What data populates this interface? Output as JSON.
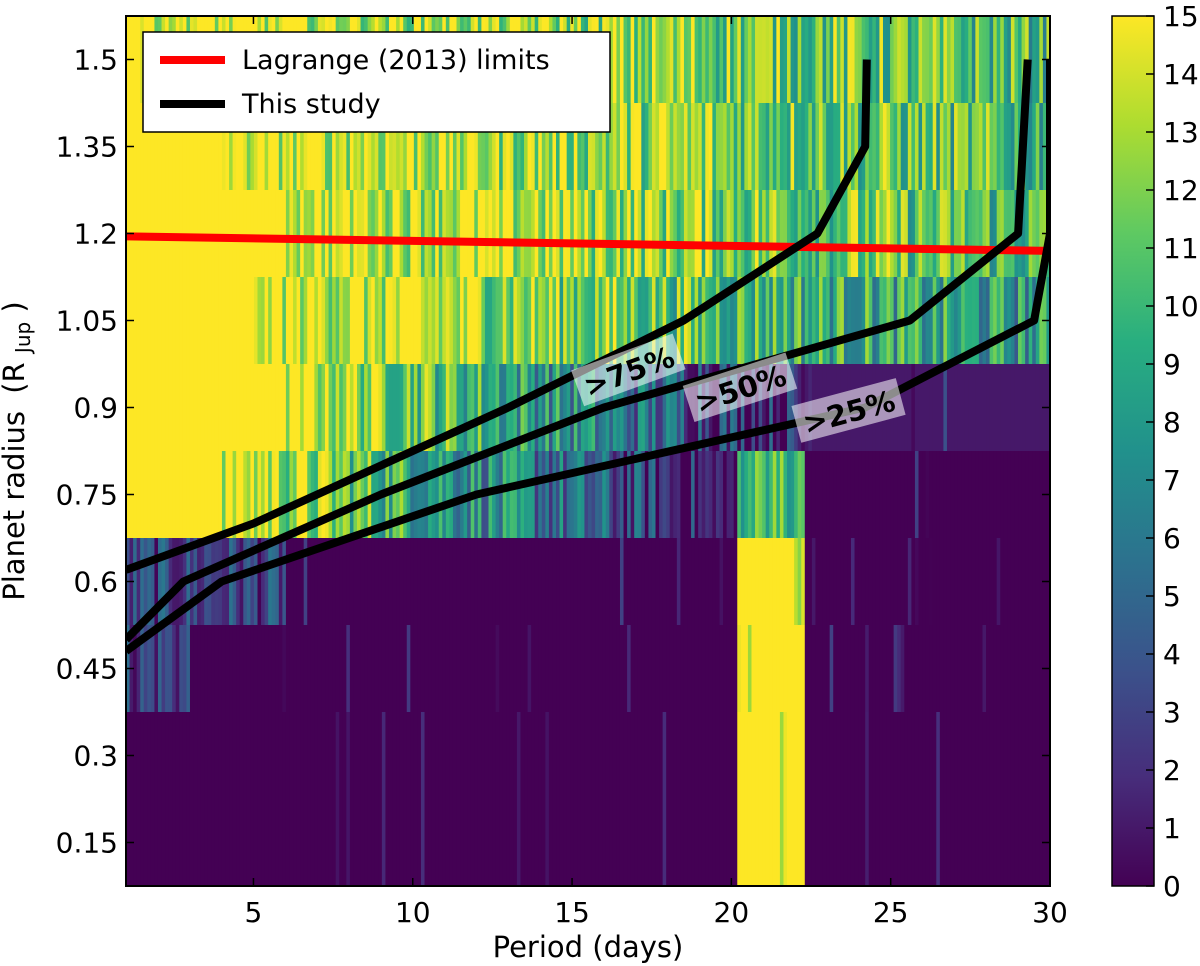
{
  "chart_data": {
    "type": "heatmap",
    "xlabel": "Period (days)",
    "ylabel": "Planet radius",
    "ylabel_unit": "(R",
    "ylabel_unit_sub": "Jup",
    "ylabel_unit_close": ")",
    "xlim": [
      1,
      30
    ],
    "ylim": [
      0.075,
      1.575
    ],
    "x_ticks": [
      5,
      10,
      15,
      20,
      25,
      30
    ],
    "y_ticks": [
      0.15,
      0.3,
      0.45,
      0.6,
      0.75,
      0.9,
      1.05,
      1.2,
      1.35,
      1.5
    ],
    "y_tick_labels": [
      "0.15",
      "0.3",
      "0.45",
      "0.6",
      "0.75",
      "0.9",
      "1.05",
      "1.2",
      "1.35",
      "1.5"
    ],
    "colorbar": {
      "min": 0,
      "max": 15,
      "ticks": [
        0,
        1,
        2,
        3,
        4,
        5,
        6,
        7,
        8,
        9,
        10,
        11,
        12,
        13,
        14,
        15
      ],
      "colormap": "viridis"
    },
    "colormap_stops": [
      "#440154",
      "#472d7b",
      "#3b528b",
      "#2c728e",
      "#21918c",
      "#28ae80",
      "#5ec962",
      "#addc30",
      "#fde725"
    ],
    "heatmap_bands": [
      {
        "y_range": [
          0.075,
          0.375
        ],
        "base_value": 0,
        "vertical_stripe": {
          "x_range": [
            20.2,
            22.3
          ],
          "value": 15
        }
      },
      {
        "y_range": [
          0.375,
          0.525
        ],
        "base_value": 0,
        "noisy_left_until": 3,
        "vertical_stripe": {
          "x_range": [
            20.2,
            22.3
          ],
          "value": 15
        }
      },
      {
        "y_range": [
          0.525,
          0.675
        ],
        "base_value": 0,
        "noisy_left_until": 6,
        "vertical_stripe": {
          "x_range": [
            20.2,
            22.3
          ],
          "value": 15
        }
      },
      {
        "y_range": [
          0.675,
          0.825
        ],
        "left_value": 15,
        "transition_x": [
          4,
          20.2
        ],
        "right_value": 0,
        "vertical_stripe": {
          "x_range": [
            20.2,
            22.3
          ],
          "value": 13
        }
      },
      {
        "y_range": [
          0.825,
          0.975
        ],
        "left_value": 15,
        "transition_x": [
          6,
          22.3
        ],
        "right_value": 1
      },
      {
        "y_range": [
          0.975,
          1.125
        ],
        "left_value": 15,
        "transition_x": [
          5,
          28
        ],
        "right_value": 8
      },
      {
        "y_range": [
          1.125,
          1.275
        ],
        "left_value": 15,
        "transition_x": [
          6,
          30
        ],
        "right_value": 10
      },
      {
        "y_range": [
          1.275,
          1.425
        ],
        "left_value": 15,
        "transition_x": [
          4,
          30
        ],
        "right_value": 10
      },
      {
        "y_range": [
          1.425,
          1.575
        ],
        "left_value": 15,
        "transition_x": [
          1.5,
          30
        ],
        "right_value": 10
      }
    ],
    "series": [
      {
        "name": "Lagrange (2013) limits",
        "color": "#ff0000",
        "points": [
          [
            1,
            1.195
          ],
          [
            30,
            1.17
          ]
        ]
      },
      {
        "name": "This study",
        "color": "#000000",
        "label": ">75%",
        "points": [
          [
            1,
            0.62
          ],
          [
            5,
            0.7
          ],
          [
            9,
            0.8
          ],
          [
            13,
            0.9
          ],
          [
            18.5,
            1.05
          ],
          [
            22.7,
            1.2
          ],
          [
            24.2,
            1.35
          ],
          [
            24.25,
            1.5
          ]
        ]
      },
      {
        "name": "",
        "color": "#000000",
        "label": ">50%",
        "points": [
          [
            1,
            0.5
          ],
          [
            2.8,
            0.6
          ],
          [
            9,
            0.75
          ],
          [
            16,
            0.9
          ],
          [
            25.6,
            1.05
          ],
          [
            29,
            1.2
          ],
          [
            29.3,
            1.5
          ]
        ]
      },
      {
        "name": "",
        "color": "#000000",
        "label": ">25%",
        "points": [
          [
            1,
            0.48
          ],
          [
            4,
            0.6
          ],
          [
            12,
            0.75
          ],
          [
            24.2,
            0.9
          ],
          [
            29.5,
            1.05
          ],
          [
            30,
            1.2
          ],
          [
            30,
            1.5
          ]
        ]
      }
    ],
    "contour_labels": [
      {
        "text": ">75%",
        "x": 16.8,
        "y": 0.96,
        "angle": -20
      },
      {
        "text": ">50%",
        "x": 20.3,
        "y": 0.93,
        "angle": -18
      },
      {
        "text": ">25%",
        "x": 23.7,
        "y": 0.89,
        "angle": -15
      }
    ],
    "legend": {
      "placement": "top-left",
      "entries": [
        "Lagrange (2013) limits",
        "This study"
      ]
    }
  }
}
